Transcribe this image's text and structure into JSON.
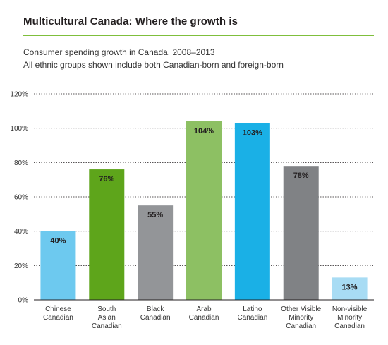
{
  "title": "Multicultural Canada: Where the growth is",
  "subtitle_line1": "Consumer spending growth in Canada, 2008–2013",
  "subtitle_line2": "All ethnic groups shown include both Canadian-born and foreign-born",
  "chart_data": {
    "type": "bar",
    "categories": [
      [
        "Chinese",
        "Canadian"
      ],
      [
        "South",
        "Asian",
        "Canadian"
      ],
      [
        "Black",
        "Canadian"
      ],
      [
        "Arab",
        "Canadian"
      ],
      [
        "Latino",
        "Canadian"
      ],
      [
        "Other Visible",
        "Minority",
        "Canadian"
      ],
      [
        "Non-visible",
        "Minority",
        "Canadian"
      ]
    ],
    "values": [
      40,
      76,
      55,
      104,
      103,
      78,
      13
    ],
    "value_labels": [
      "40%",
      "76%",
      "55%",
      "104%",
      "103%",
      "78%",
      "13%"
    ],
    "colors": [
      "#6dc9ef",
      "#5ea51b",
      "#939598",
      "#8dc063",
      "#1ab0e6",
      "#808285",
      "#a8dcf4"
    ],
    "ylim": [
      0,
      120
    ],
    "yticks": [
      0,
      20,
      40,
      60,
      80,
      100,
      120
    ],
    "ytick_labels": [
      "0%",
      "20%",
      "40%",
      "60%",
      "80%",
      "100%",
      "120%"
    ],
    "grid": true
  }
}
